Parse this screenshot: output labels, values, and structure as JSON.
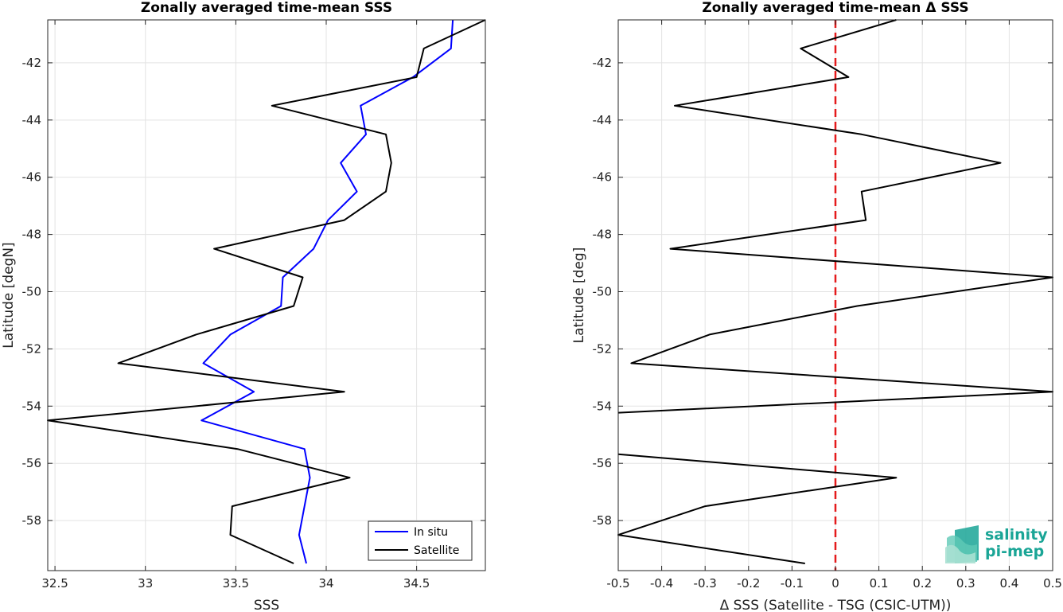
{
  "chart_data": [
    {
      "type": "line",
      "title": "Zonally averaged time-mean SSS",
      "xlabel": "SSS",
      "ylabel": "Latitude [degN]",
      "xlim": [
        32.46,
        34.88
      ],
      "ylim": [
        -59.75,
        -40.5
      ],
      "xticks": [
        32.5,
        33,
        33.5,
        34,
        34.5
      ],
      "xtick_labels": [
        "32.5",
        "33",
        "33.5",
        "34",
        "34.5"
      ],
      "yticks": [
        -58,
        -56,
        -54,
        -52,
        -50,
        -48,
        -46,
        -44,
        -42
      ],
      "ytick_labels": [
        "-58",
        "-56",
        "-54",
        "-52",
        "-50",
        "-48",
        "-46",
        "-44",
        "-42"
      ],
      "grid": true,
      "legend_position": "bottom-right",
      "series": [
        {
          "name": "In situ",
          "color": "#0000ff",
          "x": [
            34.7,
            34.69,
            34.48,
            34.19,
            34.22,
            34.08,
            34.17,
            34.01,
            33.93,
            33.76,
            33.75,
            33.47,
            33.32,
            33.6,
            33.31,
            33.88,
            33.91,
            33.88,
            33.85,
            33.89
          ],
          "y": [
            -40.5,
            -41.5,
            -42.5,
            -43.5,
            -44.5,
            -45.5,
            -46.5,
            -47.5,
            -48.5,
            -49.5,
            -50.5,
            -51.5,
            -52.5,
            -53.5,
            -54.5,
            -55.5,
            -56.5,
            -57.5,
            -58.5,
            -59.5
          ]
        },
        {
          "name": "Satellite",
          "color": "#000000",
          "x": [
            34.88,
            34.54,
            34.5,
            33.7,
            34.33,
            34.36,
            34.33,
            34.1,
            33.38,
            33.87,
            33.82,
            33.28,
            32.85,
            34.1,
            32.46,
            33.51,
            34.13,
            33.48,
            33.47,
            33.82
          ],
          "y": [
            -40.5,
            -41.5,
            -42.5,
            -43.5,
            -44.5,
            -45.5,
            -46.5,
            -47.5,
            -48.5,
            -49.5,
            -50.5,
            -51.5,
            -52.5,
            -53.5,
            -54.5,
            -55.5,
            -56.5,
            -57.5,
            -58.5,
            -59.5
          ]
        }
      ]
    },
    {
      "type": "line",
      "title": "Zonally averaged time-mean Δ SSS",
      "xlabel": "Δ SSS (Satellite - TSG (CSIC-UTM))",
      "ylabel": "Latitude [deg]",
      "xlim": [
        -0.5,
        0.5
      ],
      "ylim": [
        -59.75,
        -40.5
      ],
      "xticks": [
        -0.5,
        -0.4,
        -0.3,
        -0.2,
        -0.1,
        0,
        0.1,
        0.2,
        0.3,
        0.4,
        0.5
      ],
      "xtick_labels": [
        "-0.5",
        "-0.4",
        "-0.3",
        "-0.2",
        "-0.1",
        "0",
        "0.1",
        "0.2",
        "0.3",
        "0.4",
        "0.5"
      ],
      "yticks": [
        -58,
        -56,
        -54,
        -52,
        -50,
        -48,
        -46,
        -44,
        -42
      ],
      "ytick_labels": [
        "-58",
        "-56",
        "-54",
        "-52",
        "-50",
        "-48",
        "-46",
        "-44",
        "-42"
      ],
      "grid": true,
      "reference_line": {
        "x": 0,
        "color": "#e41a1c",
        "style": "dashed"
      },
      "series": [
        {
          "color": "#000000",
          "segments": [
            {
              "x": [
                0.14,
                -0.08,
                0.03,
                -0.37,
                0.06,
                0.38,
                0.06,
                0.07,
                -0.38,
                0.5,
                0.05,
                -0.29,
                -0.47,
                0.5,
                -0.5
              ],
              "y": [
                -40.5,
                -41.5,
                -42.5,
                -43.5,
                -44.5,
                -45.5,
                -46.5,
                -47.5,
                -48.5,
                -49.5,
                -50.5,
                -51.5,
                -52.5,
                -53.5,
                -54.23
              ]
            },
            {
              "x": [
                -0.5,
                0.14,
                -0.3,
                -0.5,
                -0.07
              ],
              "y": [
                -55.68,
                -56.5,
                -57.5,
                -58.5,
                -59.5
              ]
            }
          ]
        }
      ]
    }
  ],
  "logo": {
    "line1": "salinity",
    "line2": "pi-mep",
    "color": "#1aa596"
  }
}
